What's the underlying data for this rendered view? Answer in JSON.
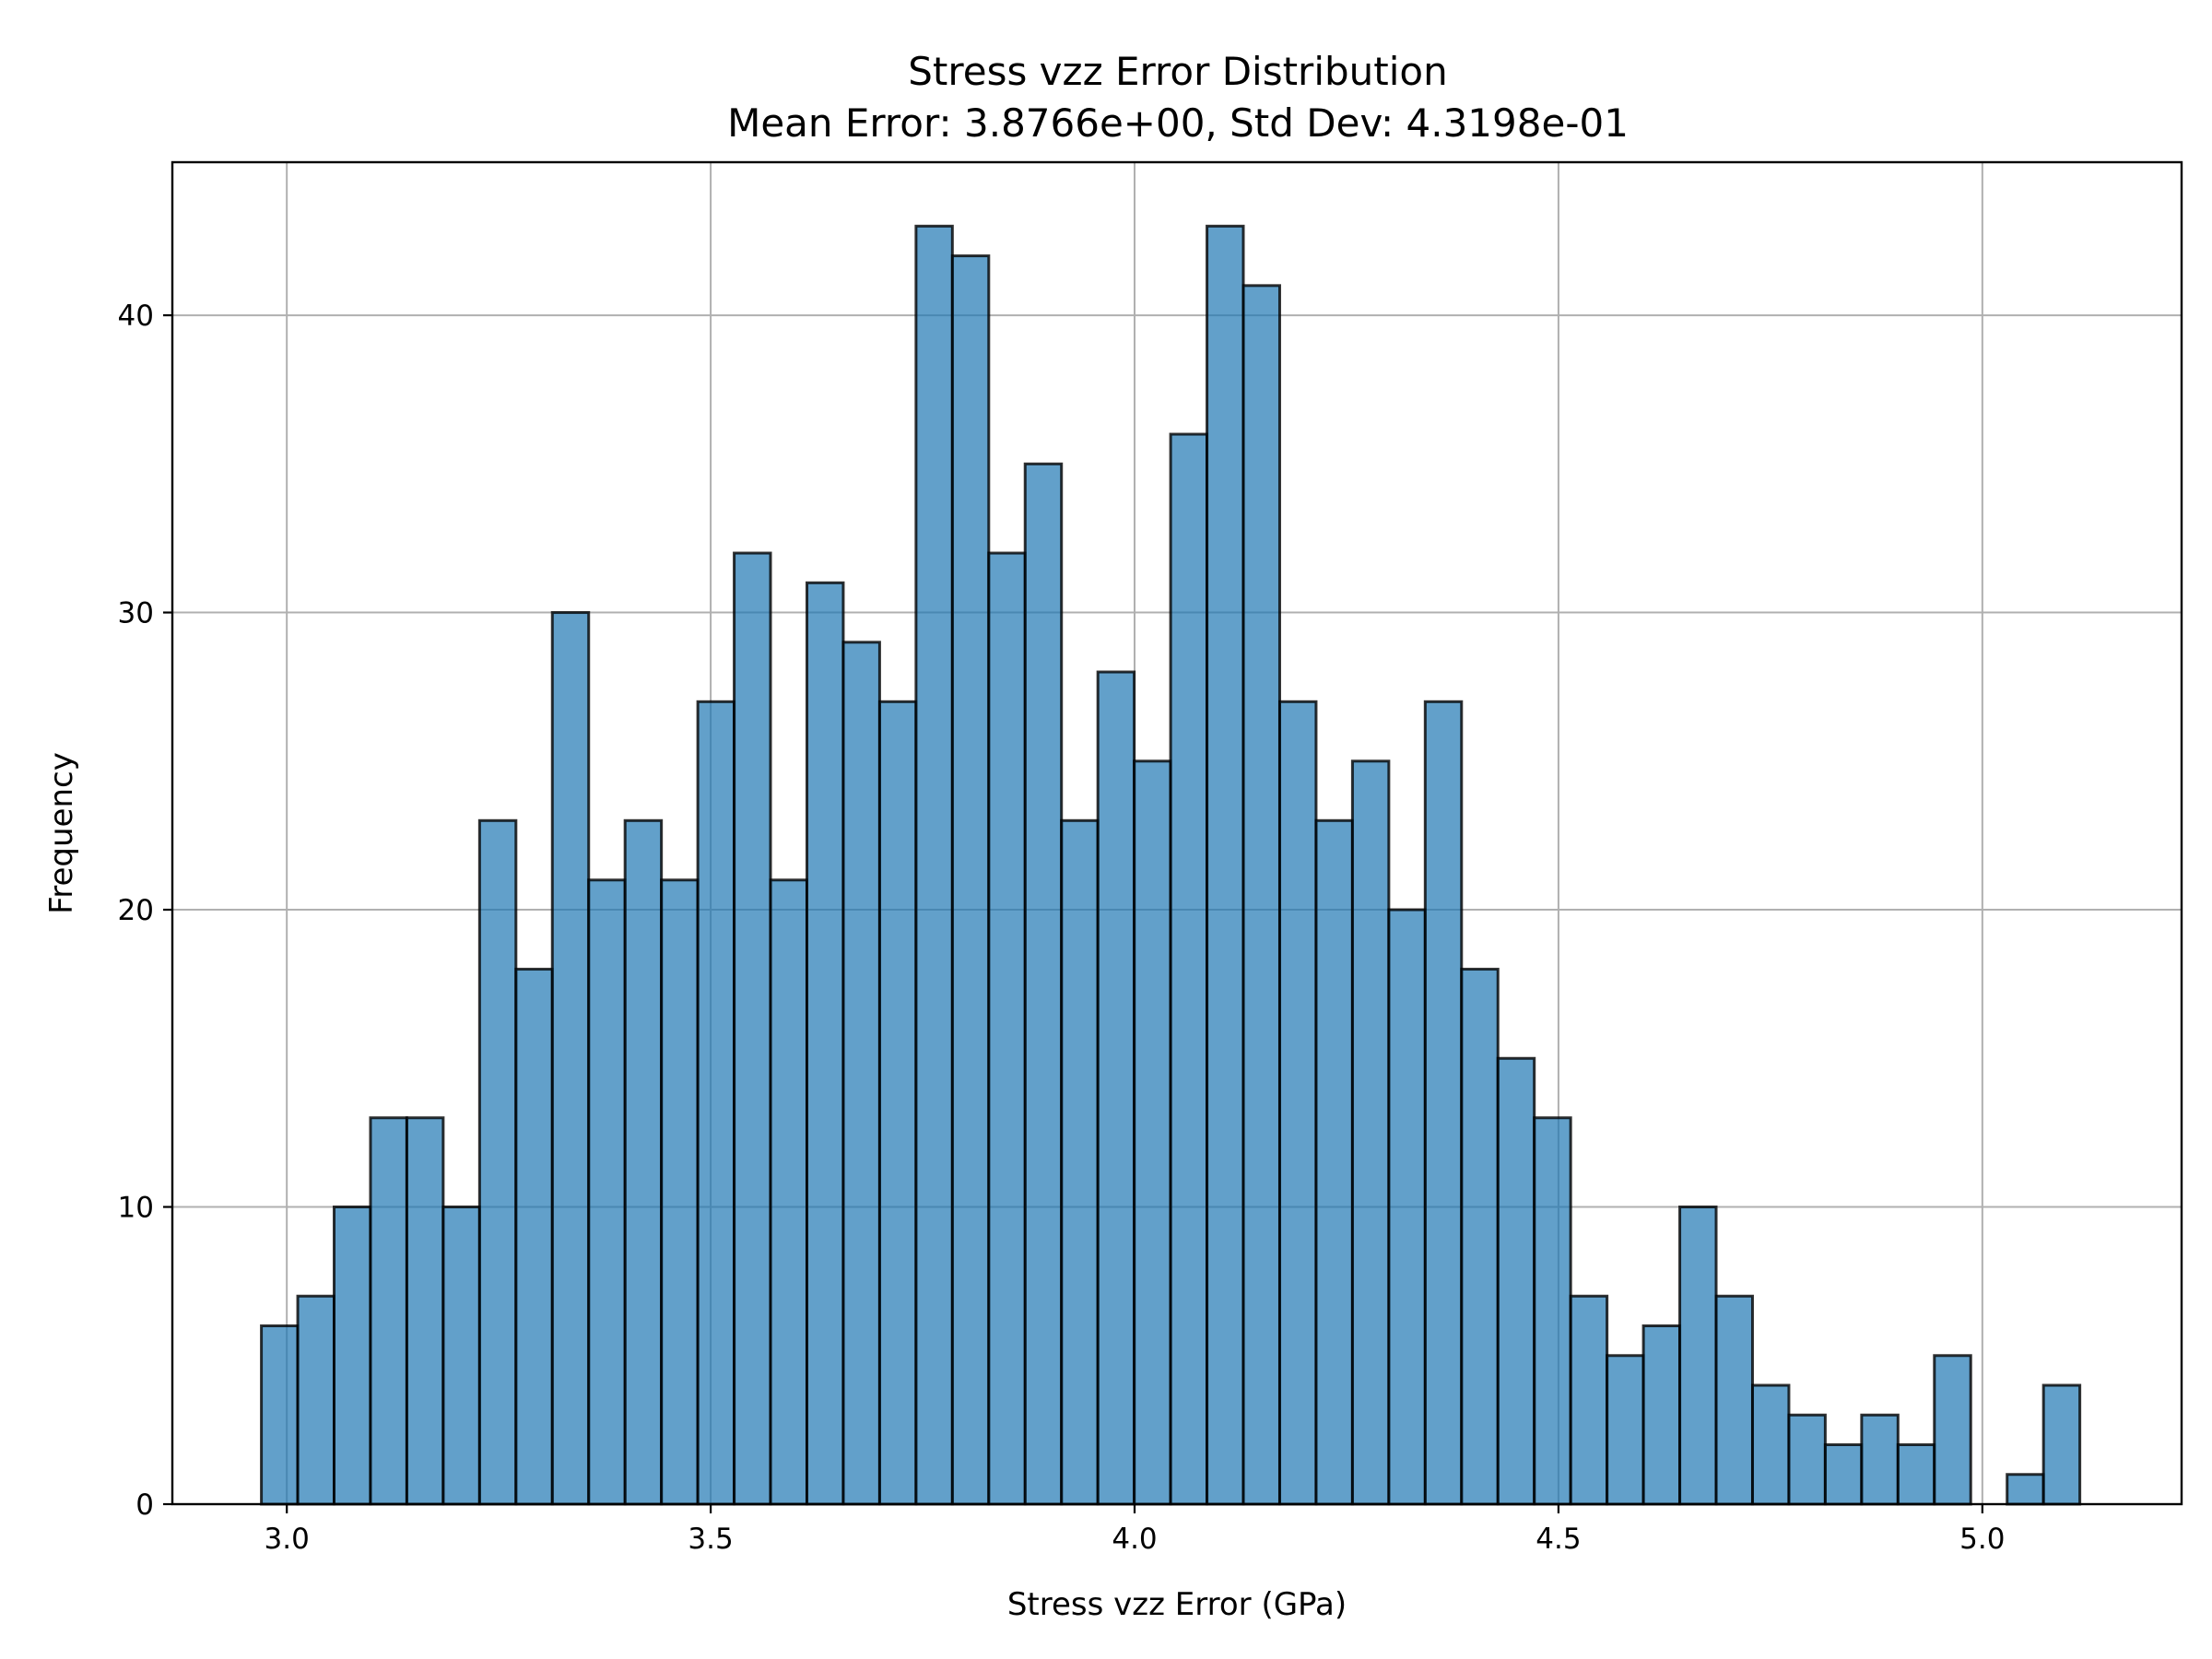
{
  "chart_data": {
    "type": "bar",
    "title": "Stress vzz Error Distribution",
    "subtitle": "Mean Error: 3.8766e+00, Std Dev: 4.3198e-01",
    "xlabel": "Stress vzz Error (GPa)",
    "ylabel": "Frequency",
    "xlim": [
      2.865,
      5.235
    ],
    "ylim": [
      0,
      45.15
    ],
    "bin_start": 2.97,
    "bin_width": 0.0429,
    "values": [
      6,
      7,
      10,
      13,
      13,
      10,
      23,
      18,
      30,
      21,
      23,
      21,
      27,
      32,
      21,
      31,
      29,
      27,
      43,
      42,
      32,
      35,
      23,
      28,
      25,
      36,
      43,
      41,
      27,
      23,
      25,
      20,
      27,
      18,
      15,
      13,
      7,
      5,
      6,
      10,
      7,
      4,
      3,
      2,
      3,
      2,
      5,
      0,
      1,
      4
    ],
    "x_ticks": [
      {
        "value": 3.0,
        "label": "3.0"
      },
      {
        "value": 3.5,
        "label": "3.5"
      },
      {
        "value": 4.0,
        "label": "4.0"
      },
      {
        "value": 4.5,
        "label": "4.5"
      },
      {
        "value": 5.0,
        "label": "5.0"
      }
    ],
    "y_ticks": [
      {
        "value": 0,
        "label": "0"
      },
      {
        "value": 10,
        "label": "10"
      },
      {
        "value": 20,
        "label": "20"
      },
      {
        "value": 30,
        "label": "30"
      },
      {
        "value": 40,
        "label": "40"
      }
    ],
    "grid": true,
    "bar_color": "#1f77b4",
    "edge_color": "#000000"
  }
}
